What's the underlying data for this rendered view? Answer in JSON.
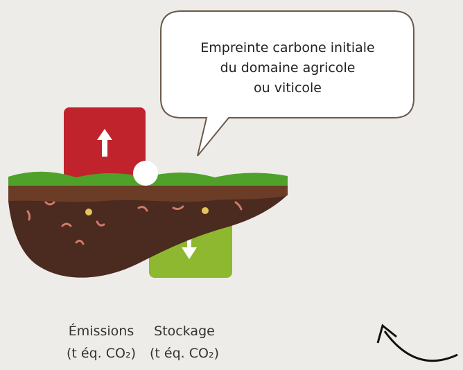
{
  "bubble": {
    "lines": [
      "Empreinte carbone initiale",
      "du domaine agricole",
      "ou viticole"
    ]
  },
  "labels": [
    {
      "title": "Émissions",
      "unit": "(t éq. CO₂)"
    },
    {
      "title": "Stockage",
      "unit": "(t éq. CO₂)"
    }
  ]
}
